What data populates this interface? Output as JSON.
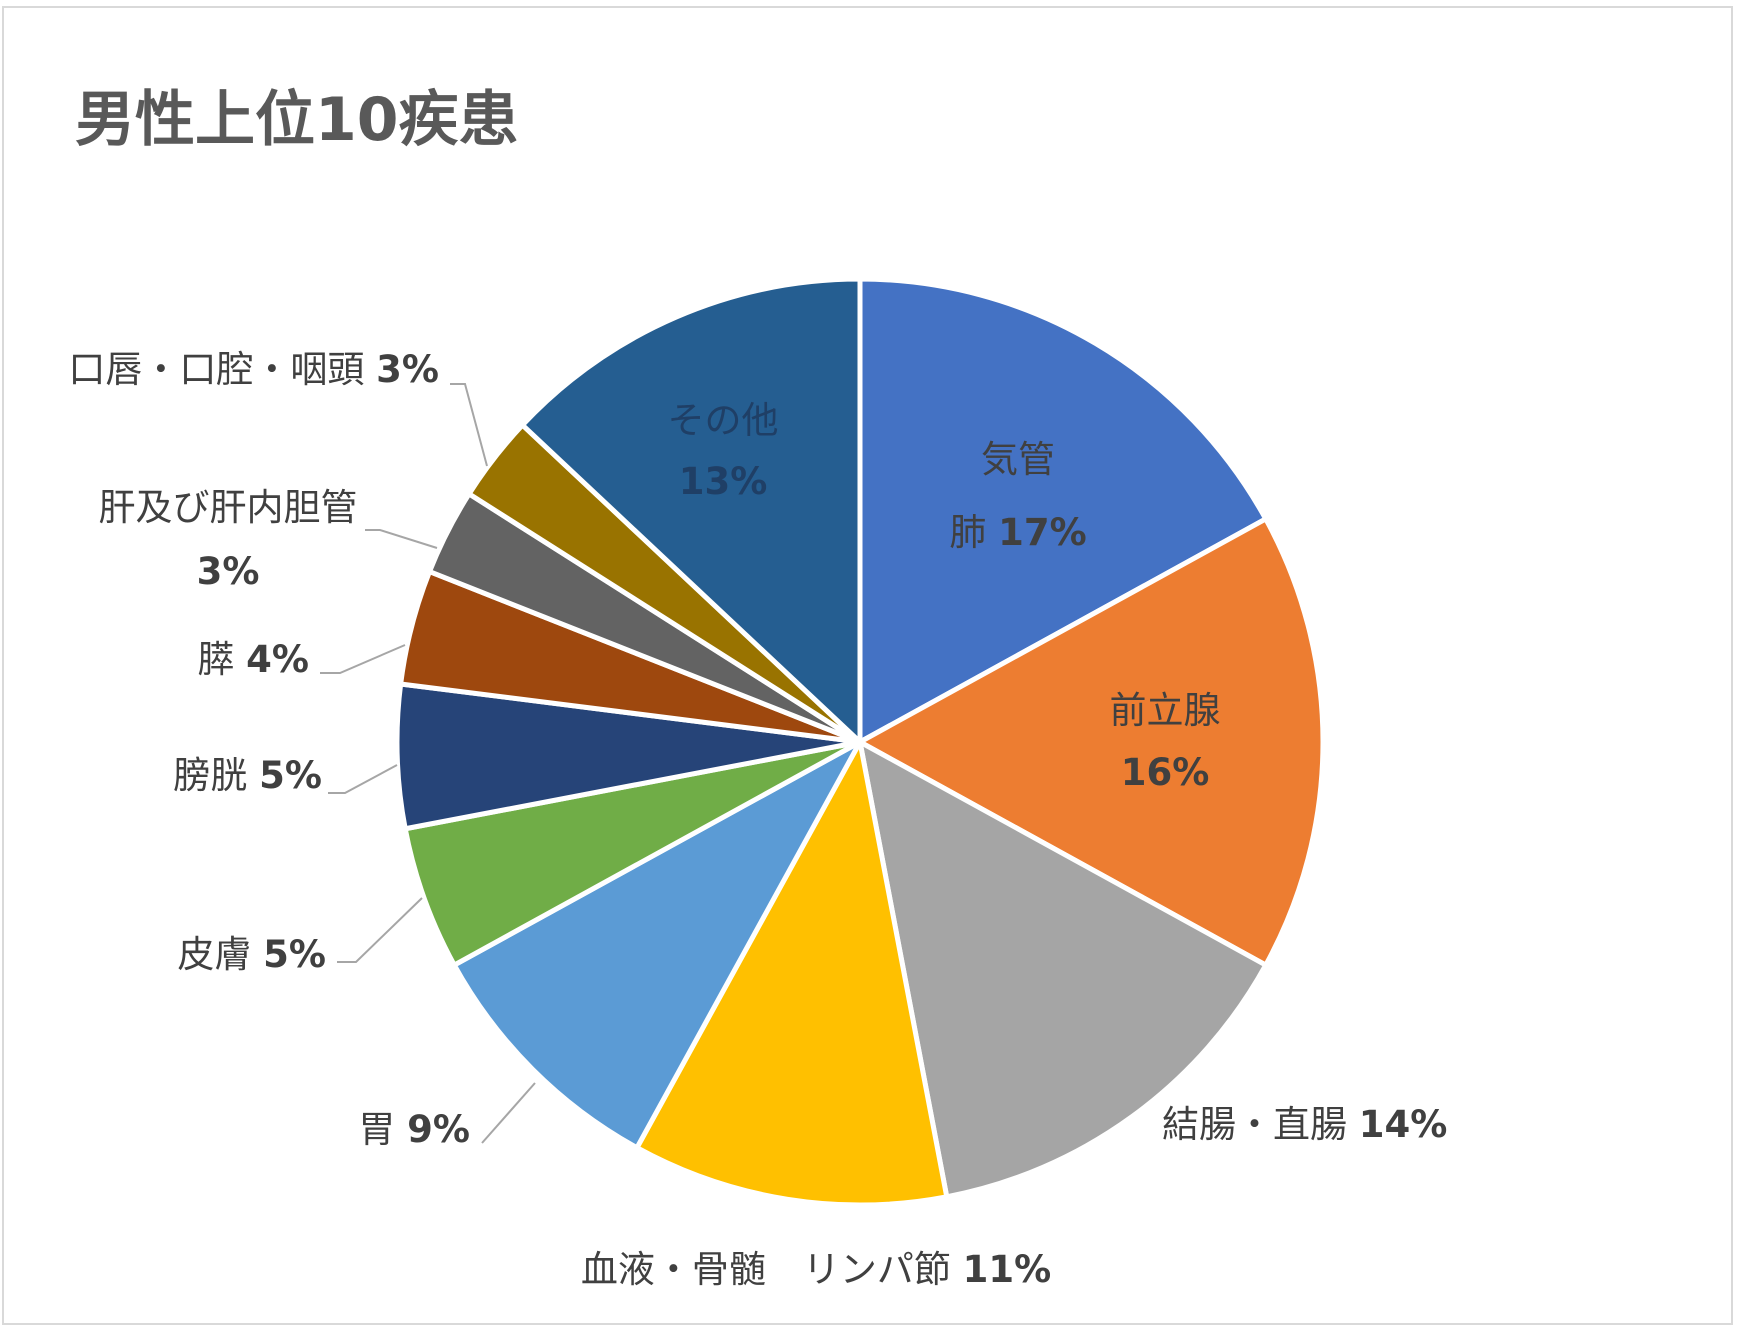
{
  "chart_data": {
    "type": "pie",
    "title": "男性上位10疾患",
    "unit": "%",
    "start": "12 o'clock",
    "direction": "clockwise",
    "legend": "none",
    "slices": [
      {
        "label": "気管\n肺",
        "value": 17,
        "value_label": "17%",
        "color": "#4472C4",
        "label_position": "inside",
        "text_color": "#404040"
      },
      {
        "label": "前立腺",
        "value": 16,
        "value_label": "16%",
        "color": "#ED7D31",
        "label_position": "inside",
        "text_color": "#404040"
      },
      {
        "label": "結腸・直腸",
        "value": 14,
        "value_label": "14%",
        "color": "#A5A5A5",
        "label_position": "outside",
        "text_color": "#404040"
      },
      {
        "label": "血液・骨髄　リンパ節",
        "value": 11,
        "value_label": "11%",
        "color": "#FFC000",
        "label_position": "outside",
        "text_color": "#404040"
      },
      {
        "label": "胃",
        "value": 9,
        "value_label": "9%",
        "color": "#5B9BD5",
        "label_position": "outside-leader",
        "text_color": "#404040"
      },
      {
        "label": "皮膚",
        "value": 5,
        "value_label": "5%",
        "color": "#70AD47",
        "label_position": "outside-leader",
        "text_color": "#404040"
      },
      {
        "label": "膀胱",
        "value": 5,
        "value_label": "5%",
        "color": "#264478",
        "label_position": "outside-leader",
        "text_color": "#404040"
      },
      {
        "label": "膵",
        "value": 4,
        "value_label": "4%",
        "color": "#9E480E",
        "label_position": "outside-leader",
        "text_color": "#404040"
      },
      {
        "label": "肝及び肝内胆管",
        "value": 3,
        "value_label": "3%",
        "color": "#636363",
        "label_position": "outside-leader",
        "text_color": "#404040"
      },
      {
        "label": "口唇・口腔・咽頭",
        "value": 3,
        "value_label": "3%",
        "color": "#997300",
        "label_position": "outside-leader",
        "text_color": "#404040"
      },
      {
        "label": "その他",
        "value": 13,
        "value_label": "13%",
        "color": "#255E91",
        "label_position": "inside",
        "text_color": "#1F3F66"
      }
    ]
  }
}
